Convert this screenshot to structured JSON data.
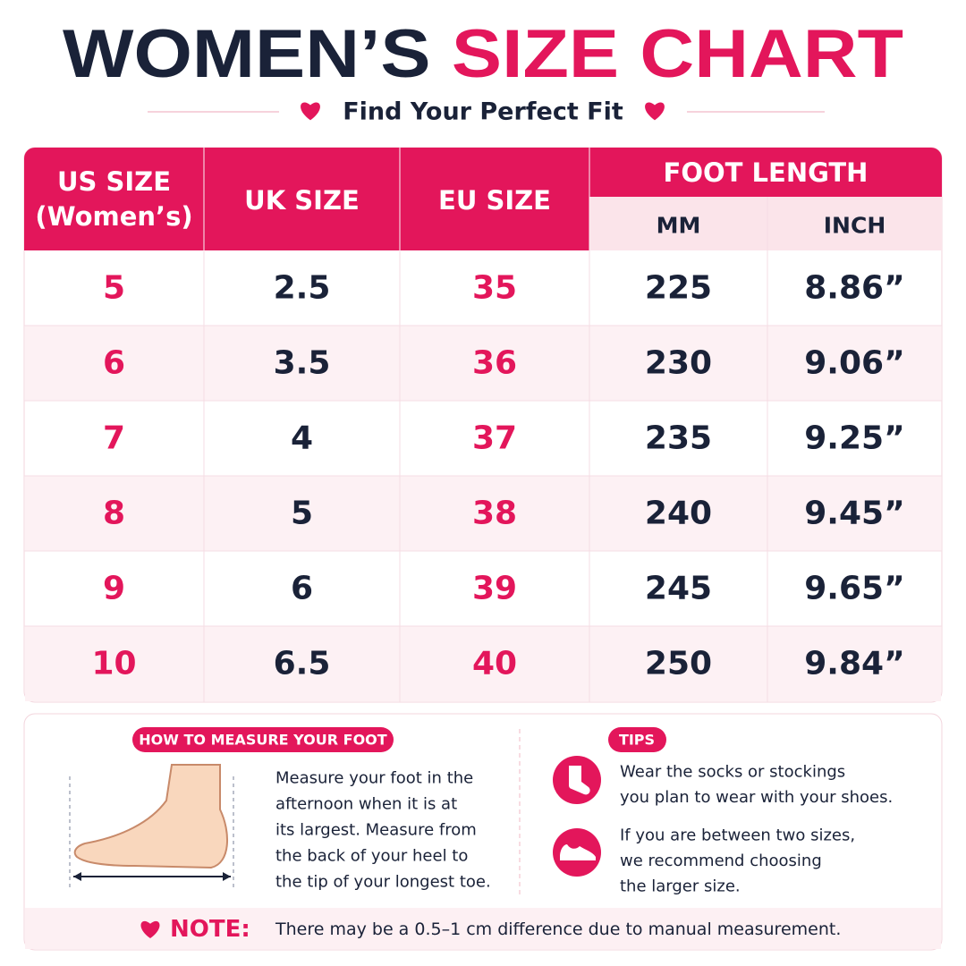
{
  "title": {
    "part1": "WOMEN’S",
    "part2": "SIZE CHART"
  },
  "subtitle": "Find Your Perfect Fit",
  "table": {
    "headers": {
      "us": [
        "US SIZE",
        "(Women’s)"
      ],
      "uk": "UK SIZE",
      "eu": "EU SIZE",
      "foot_length": "FOOT LENGTH",
      "mm": "MM",
      "inch": "INCH"
    },
    "rows": [
      [
        "5",
        "2.5",
        "35",
        "225",
        "8.86”"
      ],
      [
        "6",
        "3.5",
        "36",
        "230",
        "9.06”"
      ],
      [
        "7",
        "4",
        "37",
        "235",
        "9.25”"
      ],
      [
        "8",
        "5",
        "38",
        "240",
        "9.45”"
      ],
      [
        "9",
        "6",
        "39",
        "245",
        "9.65”"
      ],
      [
        "10",
        "6.5",
        "40",
        "250",
        "9.84”"
      ]
    ]
  },
  "measure": {
    "label": "HOW TO MEASURE YOUR FOOT",
    "lines": [
      "Measure your foot in the",
      "afternoon when it is at",
      "its largest. Measure from",
      "the back of your heel to",
      "the tip of your longest toe."
    ]
  },
  "tips": {
    "label": "TIPS",
    "items": [
      [
        "Wear the socks or stockings",
        "you plan to wear with your shoes."
      ],
      [
        "If you are between two sizes,",
        "we recommend choosing",
        "the larger size."
      ]
    ]
  },
  "note": {
    "label": "NOTE:",
    "text": "There may be a 0.5–1 cm difference due to manual measurement."
  }
}
